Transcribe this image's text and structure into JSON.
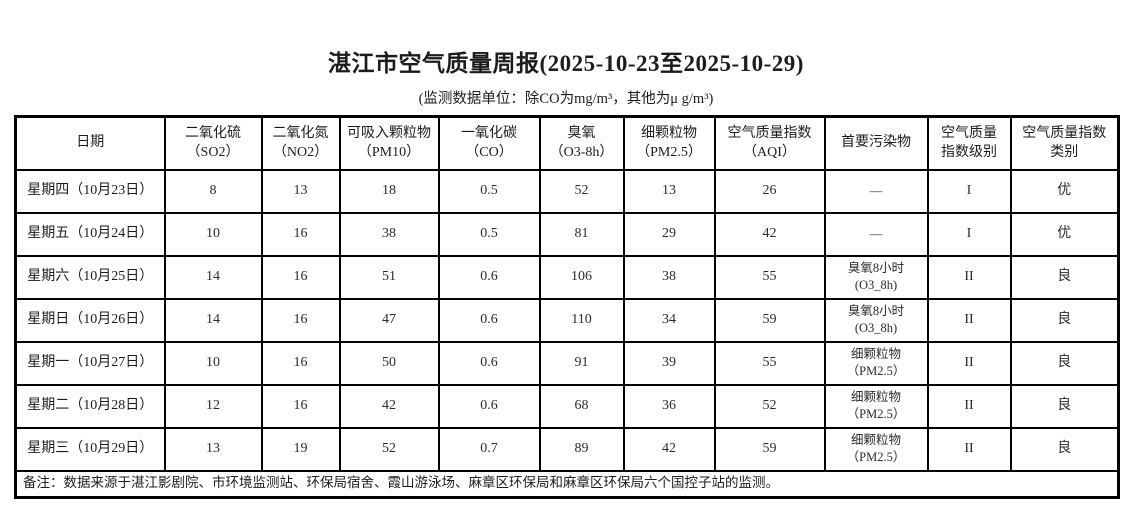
{
  "page": {
    "title": "湛江市空气质量周报(2025-10-23至2025-10-29)",
    "subtitle": "(监测数据单位：除CO为mg/m³，其他为μ g/m³)"
  },
  "table": {
    "headers": [
      "日期",
      "二氧化硫\n（SO2）",
      "二氧化氮\n（NO2）",
      "可吸入颗粒物\n（PM10）",
      "一氧化碳\n（CO）",
      "臭氧\n（O3-8h）",
      "细颗粒物\n（PM2.5）",
      "空气质量指数\n（AQI）",
      "首要污染物",
      "空气质量\n指数级别",
      "空气质量指数\n类别"
    ],
    "rows": [
      [
        "星期四（10月23日）",
        "8",
        "13",
        "18",
        "0.5",
        "52",
        "13",
        "26",
        "—",
        "I",
        "优"
      ],
      [
        "星期五（10月24日）",
        "10",
        "16",
        "38",
        "0.5",
        "81",
        "29",
        "42",
        "—",
        "I",
        "优"
      ],
      [
        "星期六（10月25日）",
        "14",
        "16",
        "51",
        "0.6",
        "106",
        "38",
        "55",
        "臭氧8小时\n(O3_8h)",
        "II",
        "良"
      ],
      [
        "星期日（10月26日）",
        "14",
        "16",
        "47",
        "0.6",
        "110",
        "34",
        "59",
        "臭氧8小时\n(O3_8h)",
        "II",
        "良"
      ],
      [
        "星期一（10月27日）",
        "10",
        "16",
        "50",
        "0.6",
        "91",
        "39",
        "55",
        "细颗粒物\n（PM2.5）",
        "II",
        "良"
      ],
      [
        "星期二（10月28日）",
        "12",
        "16",
        "42",
        "0.6",
        "68",
        "36",
        "52",
        "细颗粒物\n（PM2.5）",
        "II",
        "良"
      ],
      [
        "星期三（10月29日）",
        "13",
        "19",
        "52",
        "0.7",
        "89",
        "42",
        "59",
        "细颗粒物\n（PM2.5）",
        "II",
        "良"
      ]
    ],
    "footnote": "备注：数据来源于湛江影剧院、市环境监测站、环保局宿舍、霞山游泳场、麻章区环保局和麻章区环保局六个国控子站的监测。"
  },
  "colors": {
    "background": "#ffffff",
    "border": "#000000",
    "text": "#1c1c1c"
  }
}
